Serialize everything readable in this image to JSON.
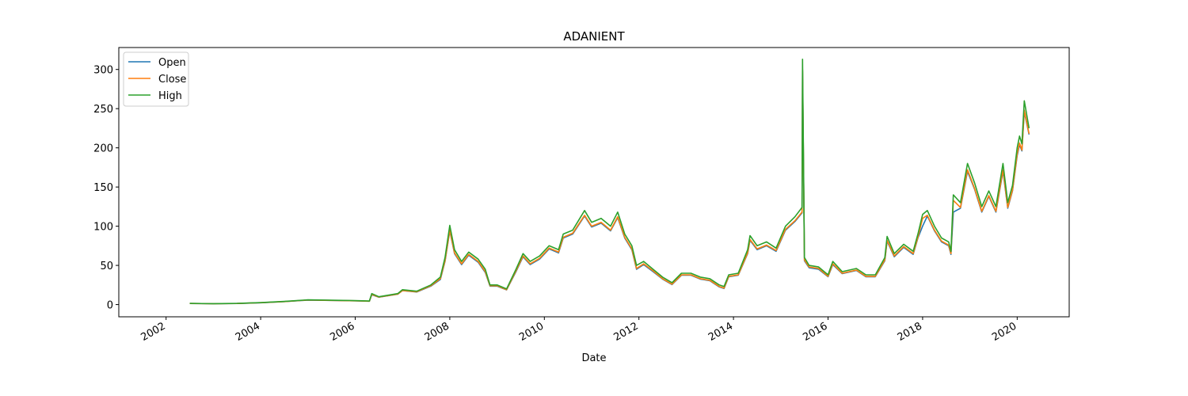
{
  "chart_data": {
    "type": "line",
    "title": "ADANIENT",
    "xlabel": "Date",
    "legend": "upper left",
    "x": [
      2002.5,
      2003.0,
      2003.5,
      2004.0,
      2004.5,
      2005.0,
      2005.5,
      2006.0,
      2006.3,
      2006.35,
      2006.5,
      2006.9,
      2007.0,
      2007.3,
      2007.6,
      2007.8,
      2007.9,
      2008.0,
      2008.1,
      2008.25,
      2008.4,
      2008.6,
      2008.75,
      2008.85,
      2009.0,
      2009.2,
      2009.4,
      2009.55,
      2009.7,
      2009.9,
      2010.1,
      2010.3,
      2010.4,
      2010.6,
      2010.85,
      2011.0,
      2011.2,
      2011.4,
      2011.55,
      2011.7,
      2011.85,
      2011.95,
      2012.1,
      2012.3,
      2012.5,
      2012.7,
      2012.9,
      2013.1,
      2013.3,
      2013.5,
      2013.7,
      2013.8,
      2013.9,
      2014.1,
      2014.3,
      2014.35,
      2014.5,
      2014.7,
      2014.9,
      2015.1,
      2015.3,
      2015.45,
      2015.46,
      2015.5,
      2015.6,
      2015.8,
      2016.0,
      2016.1,
      2016.3,
      2016.6,
      2016.8,
      2017.0,
      2017.2,
      2017.25,
      2017.4,
      2017.6,
      2017.8,
      2017.9,
      2018.0,
      2018.1,
      2018.25,
      2018.4,
      2018.55,
      2018.6,
      2018.65,
      2018.8,
      2018.95,
      2019.1,
      2019.25,
      2019.4,
      2019.55,
      2019.7,
      2019.8,
      2019.9,
      2020.0,
      2020.05,
      2020.1,
      2020.15,
      2020.25
    ],
    "series": [
      {
        "name": "Open",
        "color": "#1f77b4",
        "values": [
          1.4,
          1.1,
          1.4,
          2.3,
          3.8,
          5.7,
          5.3,
          4.8,
          4.3,
          12.5,
          9.5,
          13.2,
          17.8,
          16,
          23.5,
          32,
          55,
          94,
          65,
          51,
          63,
          54,
          41,
          23.5,
          23.5,
          18.8,
          42,
          61,
          51,
          58,
          71,
          66,
          85,
          90,
          113,
          99,
          104,
          94,
          111,
          85,
          70,
          45,
          51,
          42,
          32.5,
          25.5,
          37.5,
          37.5,
          32.5,
          30.5,
          22.5,
          20.5,
          35.5,
          37.5,
          65,
          82,
          70,
          75,
          68,
          95,
          106,
          117,
          298,
          56,
          47,
          45,
          35.5,
          51,
          39.5,
          43.5,
          35.5,
          35.5,
          56,
          81,
          61,
          73,
          64,
          85,
          100,
          113,
          94,
          80,
          75,
          64,
          118,
          123,
          170,
          147,
          118,
          138,
          118,
          170,
          123,
          145,
          190,
          204,
          196,
          246,
          217
        ]
      },
      {
        "name": "Close",
        "color": "#ff7f0e",
        "values": [
          1.4,
          1.1,
          1.4,
          2.4,
          3.8,
          5.8,
          5.3,
          4.8,
          4.3,
          13,
          9.6,
          13.4,
          18,
          16.3,
          24,
          33,
          56,
          95,
          66,
          52,
          64,
          55,
          42,
          24,
          24,
          19,
          43,
          62,
          52,
          59,
          72,
          67,
          86,
          91,
          114,
          100,
          105,
          95,
          112,
          86,
          71,
          46,
          52,
          43,
          33,
          26,
          38,
          38,
          33,
          31,
          23,
          21,
          36,
          38,
          66,
          83,
          71,
          76,
          69,
          96,
          107,
          118,
          300,
          57,
          48,
          46,
          36,
          52,
          40,
          44,
          36,
          36,
          57,
          82,
          62,
          74,
          65,
          86,
          110,
          114,
          95,
          81,
          76,
          65,
          133,
          124,
          172,
          148,
          119,
          139,
          119,
          172,
          124,
          146,
          192,
          206,
          197,
          248,
          218
        ]
      },
      {
        "name": "High",
        "color": "#2ca02c",
        "values": [
          1.5,
          1.2,
          1.5,
          2.5,
          4,
          6,
          5.5,
          5,
          4.5,
          14,
          10,
          14,
          19,
          17,
          25,
          35,
          60,
          101,
          70,
          55,
          67,
          58,
          45,
          25,
          25,
          20,
          45,
          65,
          55,
          62,
          75,
          70,
          90,
          95,
          120,
          105,
          110,
          100,
          118,
          90,
          75,
          50,
          55,
          45,
          35,
          28,
          40,
          40,
          35,
          33,
          25,
          23,
          38,
          40,
          70,
          88,
          75,
          80,
          72,
          100,
          112,
          124,
          313,
          60,
          50,
          48,
          38,
          55,
          42,
          46,
          38,
          38,
          60,
          87,
          65,
          77,
          68,
          90,
          115,
          120,
          100,
          85,
          80,
          68,
          140,
          130,
          180,
          155,
          125,
          145,
          125,
          180,
          130,
          152,
          200,
          215,
          205,
          260,
          225
        ]
      }
    ],
    "xlim": [
      2001.0,
      2021.1
    ],
    "xticks": [
      2002,
      2004,
      2006,
      2008,
      2010,
      2012,
      2014,
      2016,
      2018,
      2020
    ],
    "ylim": [
      -15.6,
      328
    ],
    "yticks": [
      0,
      50,
      100,
      150,
      200,
      250,
      300
    ]
  }
}
